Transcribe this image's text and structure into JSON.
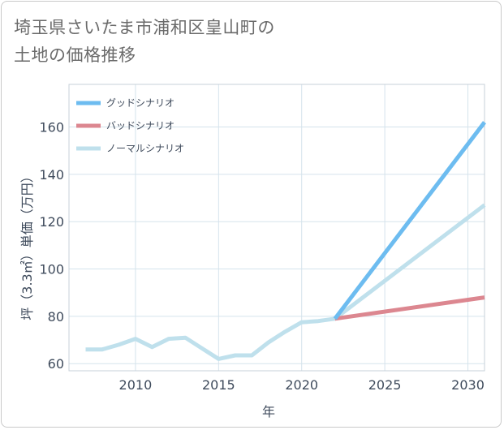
{
  "title": {
    "line1": "埼玉県さいたま市浦和区皇山町の",
    "line2": "土地の価格推移"
  },
  "chart_data": {
    "type": "line",
    "xlabel": "年",
    "ylabel": "坪（3.3㎡）単価（万円）",
    "xlim": [
      2006,
      2031
    ],
    "ylim": [
      57,
      178
    ],
    "xticks": [
      2010,
      2015,
      2020,
      2025,
      2030
    ],
    "yticks": [
      60,
      80,
      100,
      120,
      140,
      160
    ],
    "grid": true,
    "legend_position": "top-left",
    "series": [
      {
        "name": "グッドシナリオ",
        "color": "#6dbcf0",
        "x": [
          2022,
          2031
        ],
        "values": [
          79,
          162
        ]
      },
      {
        "name": "バッドシナリオ",
        "color": "#dc8790",
        "x": [
          2022,
          2031
        ],
        "values": [
          79,
          88
        ]
      },
      {
        "name": "ノーマルシナリオ",
        "color": "#bfe0ec",
        "x": [
          2007,
          2008,
          2009,
          2010,
          2011,
          2012,
          2013,
          2014,
          2015,
          2016,
          2017,
          2018,
          2019,
          2020,
          2021,
          2022,
          2031
        ],
        "values": [
          66,
          66,
          68,
          70.5,
          67,
          70.5,
          71,
          66.5,
          62,
          63.5,
          63.5,
          69,
          73.5,
          77.5,
          78,
          79,
          127
        ]
      }
    ]
  }
}
